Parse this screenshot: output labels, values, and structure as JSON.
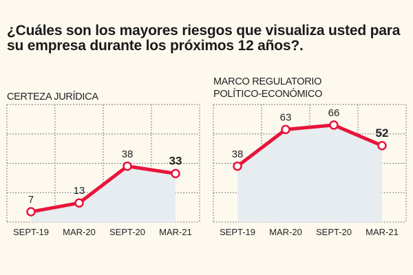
{
  "question": "¿Cuáles son los mayores riesgos que visualiza usted para su empresa durante los próximos 12 años?.",
  "colors": {
    "line": "#e8143a",
    "marker_fill": "#ffffff",
    "area_fill": "#e6ecef",
    "grid": "#7a7a7a",
    "background": "#fdf9ef"
  },
  "chart_data": [
    {
      "type": "line",
      "label_lines": [
        "CERTEZA JURÍDICA"
      ],
      "categories": [
        "SEPT-19",
        "MAR-20",
        "SEPT-20",
        "MAR-21"
      ],
      "values": [
        7,
        13,
        38,
        33
      ],
      "highlight_last": true,
      "ylim": [
        0,
        80
      ],
      "grid": "horizontal dashed",
      "xlabel": "",
      "ylabel": ""
    },
    {
      "type": "line",
      "label_lines": [
        "MARCO REGULATORIO",
        "POLÍTICO-ECONÓMICO"
      ],
      "categories": [
        "SEPT-19",
        "MAR-20",
        "SEPT-20",
        "MAR-21"
      ],
      "values": [
        38,
        63,
        66,
        52
      ],
      "highlight_last": true,
      "ylim": [
        0,
        80
      ],
      "grid": "horizontal dashed",
      "xlabel": "",
      "ylabel": ""
    }
  ]
}
